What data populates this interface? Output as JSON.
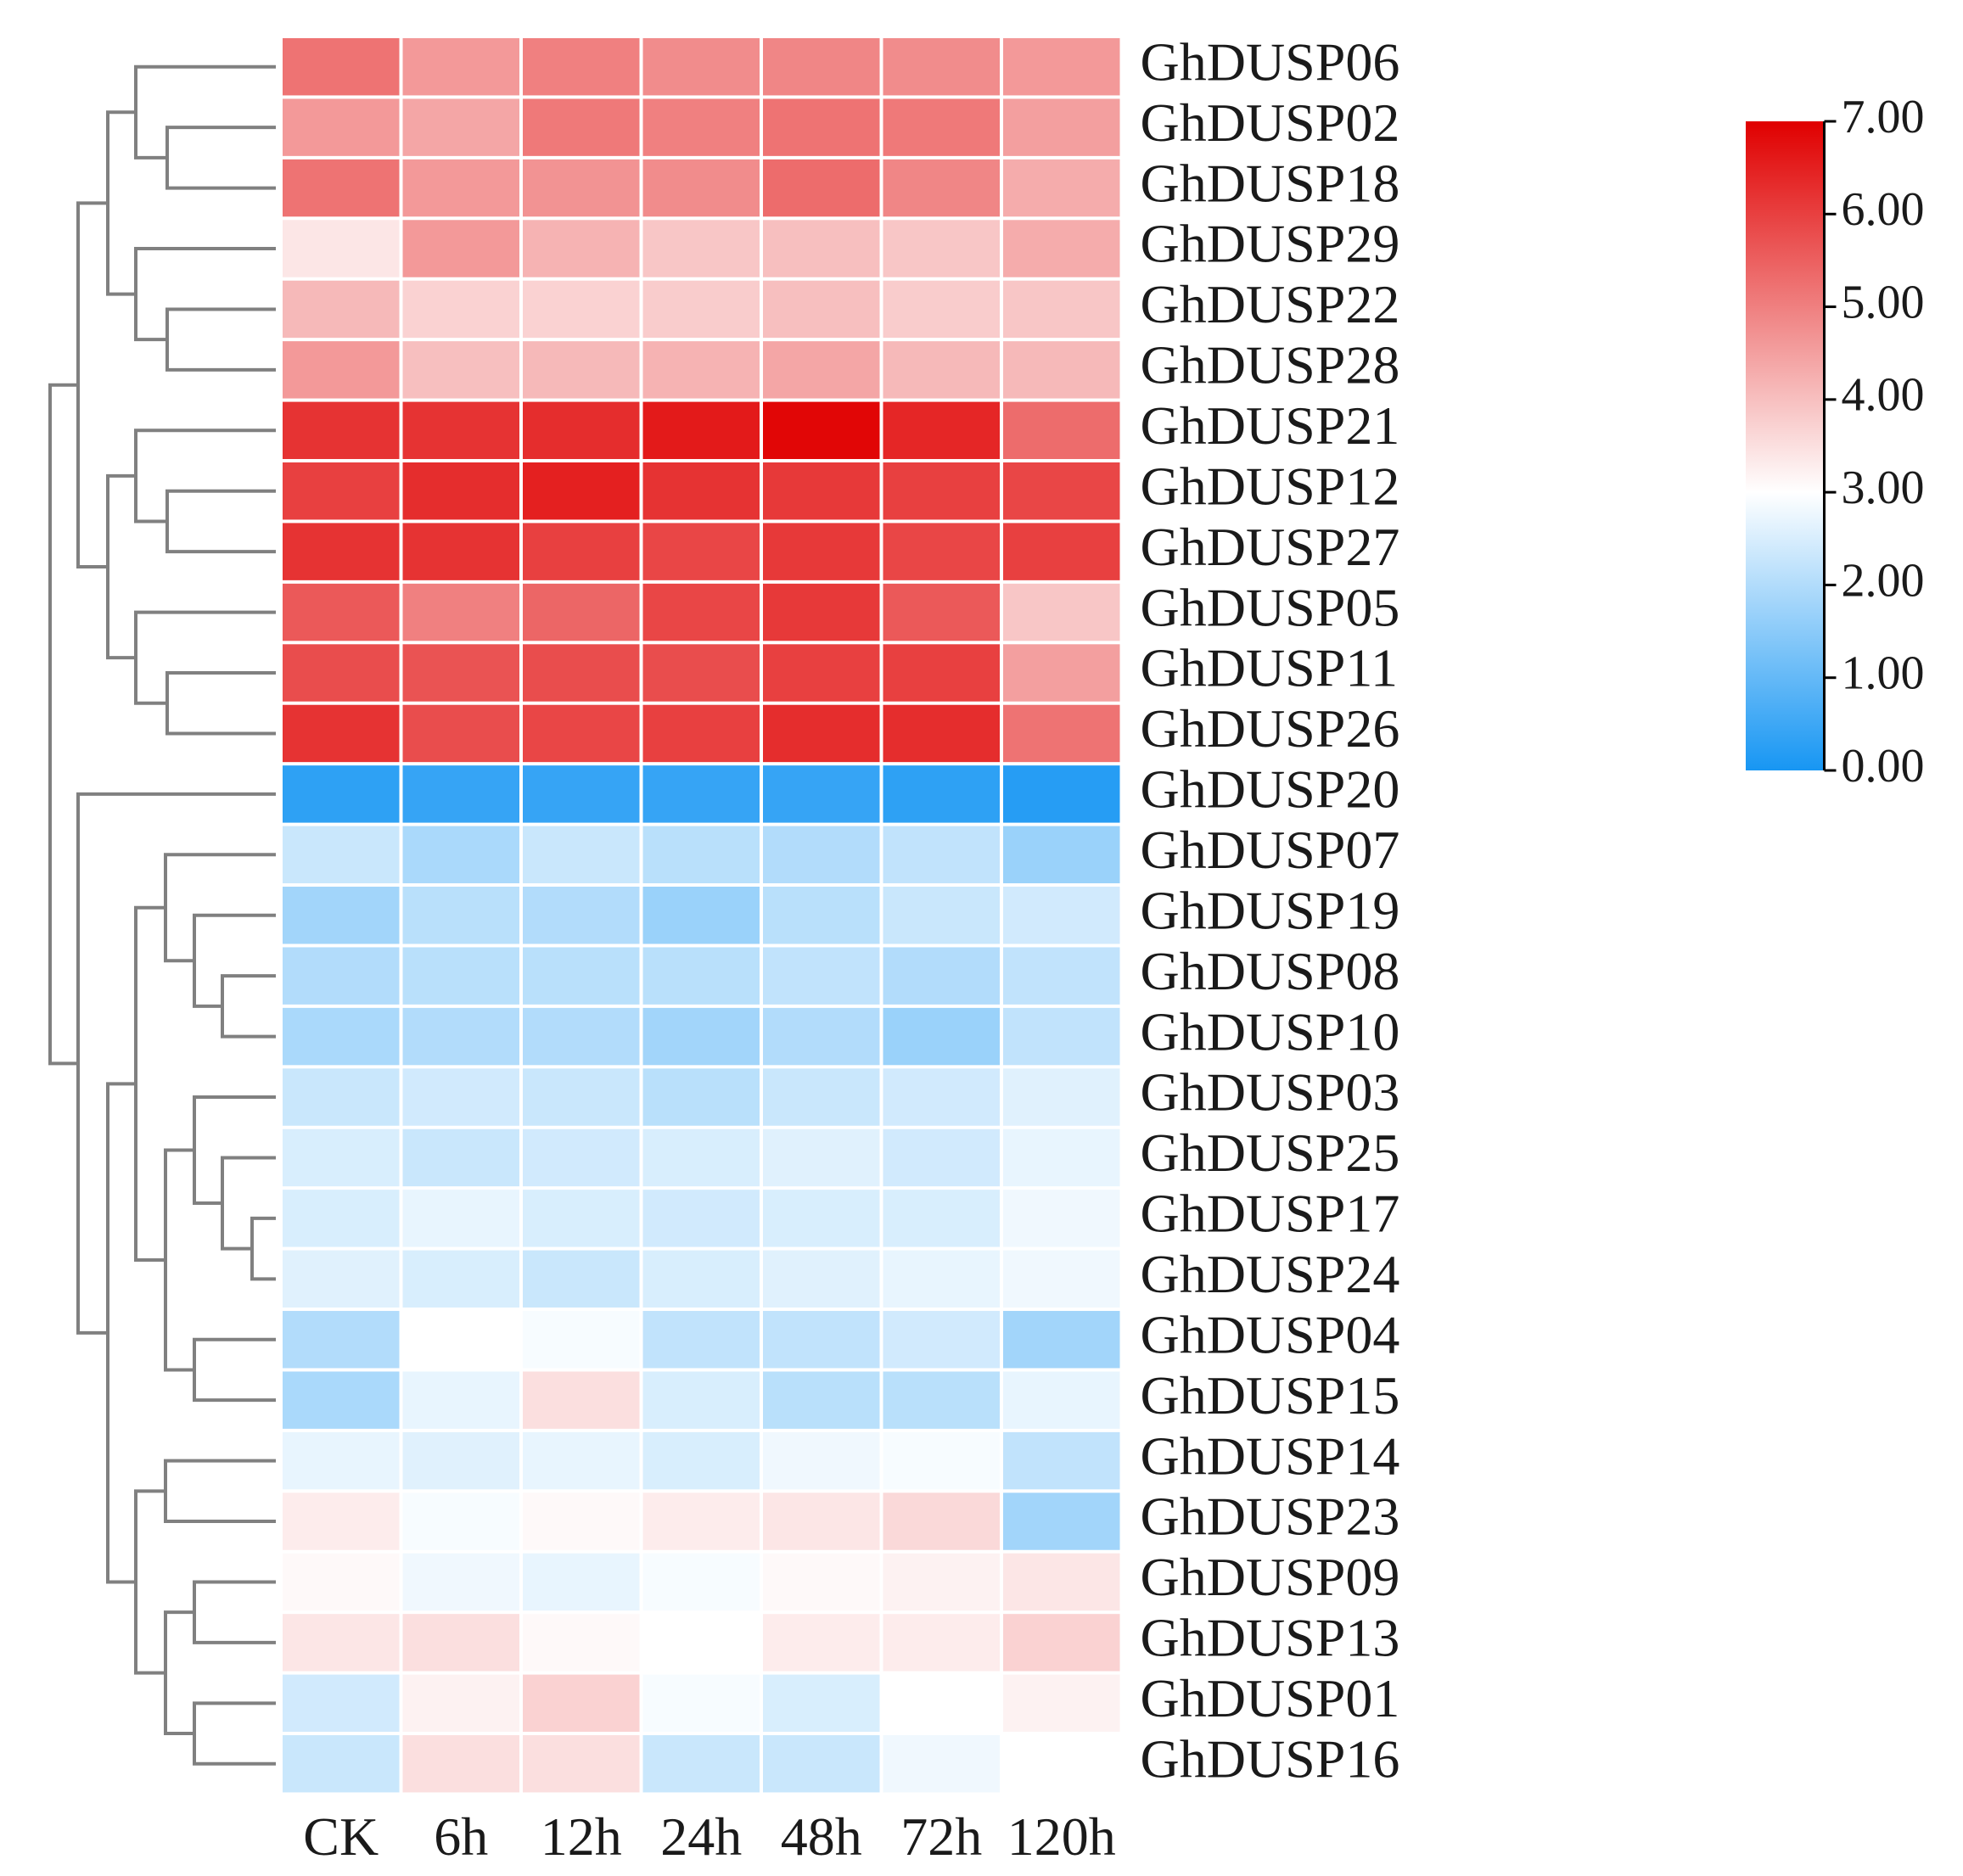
{
  "chart_data": {
    "type": "heatmap",
    "title": "",
    "columns": [
      "CK",
      "6h",
      "12h",
      "24h",
      "48h",
      "72h",
      "120h"
    ],
    "rows": [
      {
        "name": "GhDUSP06",
        "values": [
          5.2,
          4.6,
          5.0,
          4.8,
          4.9,
          4.8,
          4.6
        ]
      },
      {
        "name": "GhDUSP02",
        "values": [
          4.6,
          4.4,
          5.1,
          5.0,
          5.2,
          5.1,
          4.5
        ]
      },
      {
        "name": "GhDUSP18",
        "values": [
          5.2,
          4.6,
          4.7,
          4.8,
          5.3,
          4.9,
          4.3
        ]
      },
      {
        "name": "GhDUSP29",
        "values": [
          3.4,
          4.6,
          4.2,
          3.9,
          4.0,
          3.9,
          4.3
        ]
      },
      {
        "name": "GhDUSP22",
        "values": [
          4.1,
          3.7,
          3.7,
          3.8,
          4.0,
          3.8,
          3.9
        ]
      },
      {
        "name": "GhDUSP28",
        "values": [
          4.6,
          4.0,
          4.1,
          4.2,
          4.4,
          4.1,
          4.1
        ]
      },
      {
        "name": "GhDUSP21",
        "values": [
          6.2,
          6.2,
          6.3,
          6.6,
          6.9,
          6.4,
          5.3
        ]
      },
      {
        "name": "GhDUSP12",
        "values": [
          6.0,
          6.3,
          6.5,
          6.2,
          6.1,
          6.0,
          5.9
        ]
      },
      {
        "name": "GhDUSP27",
        "values": [
          6.2,
          6.2,
          6.0,
          5.9,
          6.1,
          5.9,
          6.0
        ]
      },
      {
        "name": "GhDUSP05",
        "values": [
          5.6,
          5.0,
          5.4,
          5.9,
          6.1,
          5.6,
          3.9
        ]
      },
      {
        "name": "GhDUSP11",
        "values": [
          5.8,
          5.7,
          5.8,
          5.8,
          6.0,
          6.0,
          4.5
        ]
      },
      {
        "name": "GhDUSP26",
        "values": [
          6.2,
          5.8,
          5.9,
          6.0,
          6.3,
          6.3,
          5.2
        ]
      },
      {
        "name": "GhDUSP20",
        "values": [
          0.3,
          0.4,
          0.4,
          0.4,
          0.4,
          0.3,
          0.2
        ]
      },
      {
        "name": "GhDUSP07",
        "values": [
          2.3,
          1.9,
          2.3,
          2.1,
          2.0,
          2.2,
          1.7
        ]
      },
      {
        "name": "GhDUSP19",
        "values": [
          1.8,
          2.1,
          2.0,
          1.7,
          2.1,
          2.3,
          2.4
        ]
      },
      {
        "name": "GhDUSP08",
        "values": [
          2.0,
          2.1,
          2.1,
          2.1,
          2.2,
          2.0,
          2.2
        ]
      },
      {
        "name": "GhDUSP10",
        "values": [
          1.9,
          2.0,
          2.0,
          1.8,
          2.0,
          1.7,
          2.2
        ]
      },
      {
        "name": "GhDUSP03",
        "values": [
          2.3,
          2.4,
          2.3,
          2.1,
          2.3,
          2.4,
          2.6
        ]
      },
      {
        "name": "GhDUSP25",
        "values": [
          2.5,
          2.3,
          2.4,
          2.5,
          2.6,
          2.4,
          2.7
        ]
      },
      {
        "name": "GhDUSP17",
        "values": [
          2.5,
          2.7,
          2.5,
          2.4,
          2.5,
          2.5,
          2.8
        ]
      },
      {
        "name": "GhDUSP24",
        "values": [
          2.6,
          2.5,
          2.3,
          2.5,
          2.6,
          2.7,
          2.8
        ]
      },
      {
        "name": "GhDUSP04",
        "values": [
          2.0,
          3.0,
          2.9,
          2.2,
          2.2,
          2.4,
          1.8
        ]
      },
      {
        "name": "GhDUSP15",
        "values": [
          1.9,
          2.7,
          3.5,
          2.5,
          2.1,
          2.1,
          2.7
        ]
      },
      {
        "name": "GhDUSP14",
        "values": [
          2.7,
          2.6,
          2.7,
          2.5,
          2.8,
          2.9,
          2.2
        ]
      },
      {
        "name": "GhDUSP23",
        "values": [
          3.3,
          2.9,
          3.1,
          3.3,
          3.4,
          3.6,
          1.8
        ]
      },
      {
        "name": "GhDUSP09",
        "values": [
          3.1,
          2.8,
          2.7,
          2.9,
          3.1,
          3.2,
          3.4
        ]
      },
      {
        "name": "GhDUSP13",
        "values": [
          3.4,
          3.5,
          3.1,
          3.0,
          3.3,
          3.3,
          3.7
        ]
      },
      {
        "name": "GhDUSP01",
        "values": [
          2.4,
          3.2,
          3.7,
          2.9,
          2.5,
          3.0,
          3.2
        ]
      },
      {
        "name": "GhDUSP16",
        "values": [
          2.3,
          3.5,
          3.5,
          2.3,
          2.3,
          2.8,
          3.0
        ]
      }
    ],
    "color_scale": {
      "min": 0.0,
      "mid": 3.0,
      "max": 7.0,
      "min_color": "#1796F3",
      "mid_color": "#FFFFFF",
      "max_color": "#E00000",
      "ticks": [
        "7.00",
        "6.00",
        "5.00",
        "4.00",
        "3.00",
        "2.00",
        "1.00",
        "0.00"
      ]
    },
    "dendrogram": {
      "rows": "left",
      "line_color": "#808080"
    },
    "legend_position": "top-right",
    "grid_line_color": "#FFFFFF"
  }
}
